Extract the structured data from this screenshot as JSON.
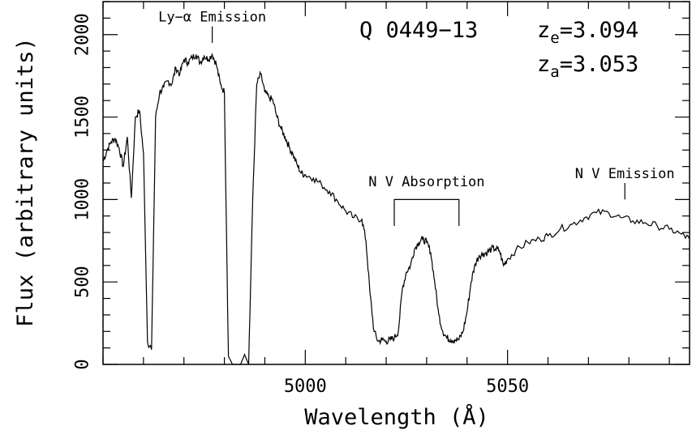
{
  "chart_data": {
    "type": "line",
    "title": "",
    "object_name": "Q 0449−13",
    "redshifts": [
      {
        "symbol": "z",
        "subscript": "e",
        "text": "=3.094"
      },
      {
        "symbol": "z",
        "subscript": "a",
        "text": "=3.053"
      }
    ],
    "xlabel": "Wavelength (Å)",
    "ylabel": "Flux (arbitrary units)",
    "xlim": [
      4950,
      5095
    ],
    "ylim": [
      0,
      2200
    ],
    "xticks_major": [
      5000,
      5050
    ],
    "xticks_minor_step": 10,
    "yticks_major": [
      0,
      500,
      1000,
      1500,
      2000
    ],
    "yticks_minor_step": 100,
    "grid": false,
    "legend": "none",
    "line_color": "#000000",
    "annotations": [
      {
        "text": "Ly−α Emission",
        "x": 4977,
        "marker": "tick",
        "y_marker": [
          1950,
          2050
        ],
        "label_y": 2080
      },
      {
        "text": "N V Absorption",
        "x_range": [
          5022,
          5038
        ],
        "marker": "bracket",
        "y_bracket": 1000,
        "y_drop": 840,
        "label_y": 1080
      },
      {
        "text": "N V Emission",
        "x": 5079,
        "marker": "tick",
        "y_marker": [
          1000,
          1100
        ],
        "label_y": 1130
      }
    ],
    "series": [
      {
        "x": [
          4950,
          4951,
          4952,
          4953,
          4954,
          4955,
          4956,
          4957,
          4958,
          4959,
          4960,
          4961,
          4962,
          4963,
          4964,
          4965,
          4966,
          4967,
          4968,
          4969,
          4970,
          4971,
          4972,
          4973,
          4974,
          4975,
          4976,
          4977,
          4978,
          4979,
          4980,
          4981,
          4982,
          4983,
          4984,
          4985,
          4986,
          4987,
          4988,
          4989,
          4990,
          4991,
          4992,
          4993,
          4994,
          4995,
          4996,
          4997,
          4998,
          4999,
          5000,
          5002,
          5004,
          5006,
          5008,
          5010,
          5012,
          5014,
          5015,
          5016,
          5017,
          5018,
          5019,
          5020,
          5021,
          5022,
          5023,
          5024,
          5025,
          5026,
          5027,
          5028,
          5029,
          5030,
          5031,
          5032,
          5033,
          5034,
          5035,
          5036,
          5037,
          5038,
          5039,
          5040,
          5041,
          5042,
          5043,
          5044,
          5045,
          5046,
          5047,
          5048,
          5049,
          5050,
          5052,
          5055,
          5058,
          5060,
          5063,
          5066,
          5069,
          5072,
          5075,
          5078,
          5081,
          5084,
          5087,
          5090,
          5093,
          5095
        ],
        "y": [
          1230,
          1300,
          1350,
          1370,
          1310,
          1200,
          1380,
          1010,
          1500,
          1540,
          1280,
          140,
          90,
          1500,
          1650,
          1680,
          1720,
          1700,
          1800,
          1760,
          1850,
          1830,
          1860,
          1880,
          1830,
          1870,
          1850,
          1880,
          1820,
          1700,
          1650,
          50,
          0,
          0,
          0,
          60,
          0,
          1000,
          1700,
          1760,
          1650,
          1620,
          1600,
          1500,
          1430,
          1380,
          1320,
          1270,
          1210,
          1160,
          1150,
          1130,
          1090,
          1050,
          990,
          930,
          890,
          880,
          750,
          430,
          200,
          140,
          150,
          140,
          150,
          160,
          200,
          460,
          560,
          600,
          700,
          740,
          760,
          740,
          680,
          500,
          300,
          200,
          160,
          150,
          150,
          150,
          200,
          320,
          500,
          610,
          660,
          670,
          680,
          700,
          700,
          690,
          600,
          640,
          690,
          740,
          760,
          780,
          820,
          850,
          890,
          920,
          920,
          890,
          870,
          860,
          840,
          820,
          790,
          760
        ]
      }
    ]
  }
}
